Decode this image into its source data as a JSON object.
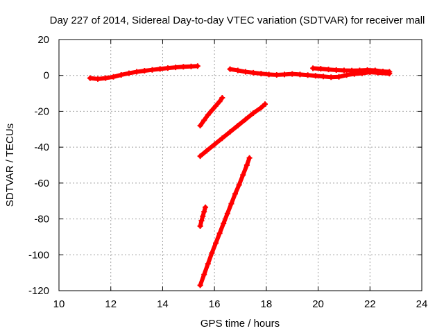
{
  "chart_data": {
    "type": "scatter",
    "title": "Day 227 of 2014, Sidereal Day-to-day VTEC variation (SDTVAR) for receiver mall",
    "xlabel": "GPS time / hours",
    "ylabel": "SDTVAR / TECUs",
    "xlim": [
      10,
      24
    ],
    "ylim": [
      -120,
      20
    ],
    "xticks": [
      10,
      12,
      14,
      16,
      18,
      20,
      22,
      24
    ],
    "yticks": [
      -120,
      -100,
      -80,
      -60,
      -40,
      -20,
      0,
      20
    ],
    "grid": true,
    "marker": "plus",
    "color": "#ff0000",
    "series": [
      {
        "x": [
          11.2,
          11.5,
          11.8,
          12.1,
          12.4,
          12.7,
          13.0,
          13.3,
          13.6,
          13.9,
          14.2,
          14.5,
          14.8,
          15.1,
          15.35
        ],
        "y": [
          -1.5,
          -2.0,
          -1.5,
          -0.8,
          0.3,
          1.2,
          2.0,
          2.6,
          3.1,
          3.6,
          4.1,
          4.5,
          4.8,
          5.0,
          5.2
        ]
      },
      {
        "x": [
          16.6,
          16.9,
          17.2,
          17.5,
          17.8,
          18.1,
          18.4,
          18.7,
          19.0,
          19.3,
          19.6,
          19.9,
          20.2,
          20.5,
          20.8,
          21.1,
          21.4,
          21.7,
          22.0,
          22.3,
          22.75
        ],
        "y": [
          3.5,
          2.8,
          2.0,
          1.5,
          1.0,
          0.5,
          0.3,
          0.5,
          0.8,
          0.5,
          0.2,
          -0.2,
          -0.6,
          -1.0,
          -0.8,
          0.2,
          0.8,
          1.2,
          1.8,
          1.5,
          1.0
        ]
      },
      {
        "x": [
          19.8,
          20.1,
          20.4,
          20.7,
          21.0,
          21.3,
          21.6,
          21.9,
          22.2,
          22.5,
          22.75
        ],
        "y": [
          4.0,
          3.7,
          3.3,
          3.0,
          2.8,
          2.7,
          2.8,
          3.0,
          2.8,
          2.2,
          2.0
        ]
      },
      {
        "x": [
          15.45,
          15.6,
          15.75,
          15.9,
          16.05,
          16.2,
          16.3
        ],
        "y": [
          -28.0,
          -25.0,
          -22.0,
          -19.5,
          -17.0,
          -14.5,
          -12.5
        ]
      },
      {
        "x": [
          15.45,
          15.7,
          16.0,
          16.3,
          16.6,
          16.9,
          17.2,
          17.5,
          17.8,
          17.95
        ],
        "y": [
          -45.0,
          -42.0,
          -38.5,
          -35.0,
          -31.5,
          -28.0,
          -24.5,
          -21.0,
          -18.0,
          -16.0
        ]
      },
      {
        "x": [
          15.45,
          15.5,
          15.55,
          15.6,
          15.65
        ],
        "y": [
          -84.0,
          -81.0,
          -78.5,
          -76.0,
          -73.5
        ]
      },
      {
        "x": [
          15.45,
          15.6,
          15.75,
          15.9,
          16.05,
          16.2,
          16.35,
          16.5,
          16.65,
          16.8,
          16.95,
          17.1,
          17.25,
          17.35
        ],
        "y": [
          -117.0,
          -111.0,
          -105.0,
          -99.0,
          -93.5,
          -88.0,
          -82.5,
          -77.0,
          -71.5,
          -66.0,
          -61.0,
          -55.5,
          -50.0,
          -46.0
        ]
      }
    ]
  }
}
